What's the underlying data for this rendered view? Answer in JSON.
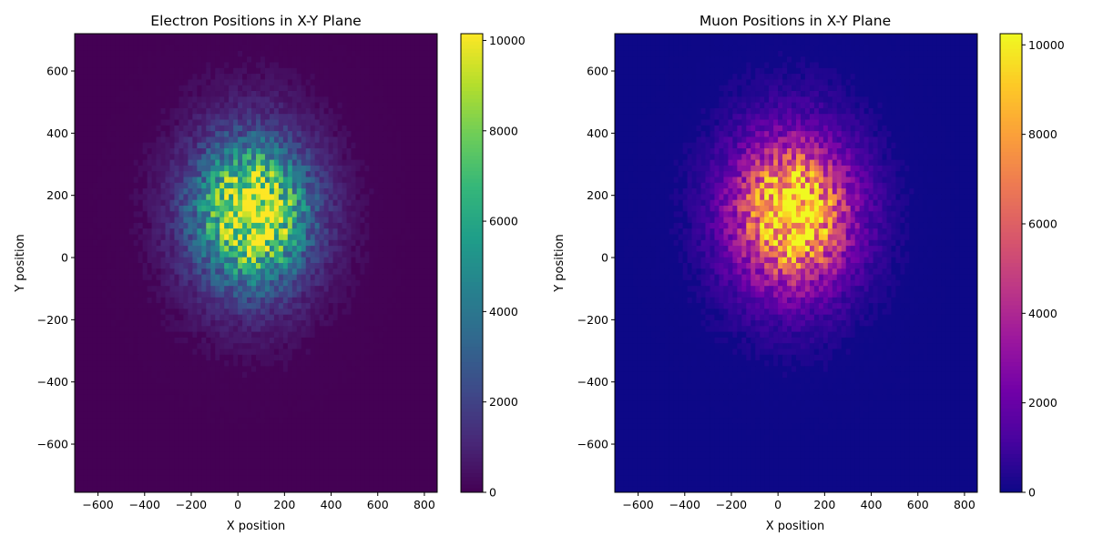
{
  "chart_data": [
    {
      "type": "heatmap",
      "title": "Electron Positions in X-Y Plane",
      "xlabel": "X position",
      "ylabel": "Y position",
      "xlim": [
        -700,
        855
      ],
      "ylim": [
        -755,
        720
      ],
      "xticks": [
        -600,
        -400,
        -200,
        0,
        200,
        400,
        600,
        800
      ],
      "yticks": [
        -600,
        -400,
        -200,
        0,
        200,
        400,
        600
      ],
      "xtick_labels": [
        "−600",
        "−400",
        "−200",
        "0",
        "200",
        "400",
        "600",
        "800"
      ],
      "ytick_labels": [
        "−600",
        "−400",
        "−200",
        "0",
        "200",
        "400",
        "600"
      ],
      "colormap": "viridis",
      "colorbar": {
        "min": 0,
        "max": 10150,
        "ticks": [
          0,
          2000,
          4000,
          6000,
          8000,
          10000
        ],
        "tick_labels": [
          "0",
          "2000",
          "4000",
          "6000",
          "8000",
          "10000"
        ]
      },
      "distribution": {
        "center_x": 60,
        "center_y": 140,
        "sigma_x": 150,
        "sigma_y": 140,
        "peak_count": 10000,
        "halo_sigma": 260,
        "halo_peak": 1500
      }
    },
    {
      "type": "heatmap",
      "title": "Muon Positions in X-Y Plane",
      "xlabel": "X position",
      "ylabel": "Y position",
      "xlim": [
        -700,
        855
      ],
      "ylim": [
        -755,
        720
      ],
      "xticks": [
        -600,
        -400,
        -200,
        0,
        200,
        400,
        600,
        800
      ],
      "yticks": [
        -600,
        -400,
        -200,
        0,
        200,
        400,
        600
      ],
      "xtick_labels": [
        "−600",
        "−400",
        "−200",
        "0",
        "200",
        "400",
        "600",
        "800"
      ],
      "ytick_labels": [
        "−600",
        "−400",
        "−200",
        "0",
        "200",
        "400",
        "600"
      ],
      "colormap": "plasma",
      "colorbar": {
        "min": 0,
        "max": 10250,
        "ticks": [
          0,
          2000,
          4000,
          6000,
          8000,
          10000
        ],
        "tick_labels": [
          "0",
          "2000",
          "4000",
          "6000",
          "8000",
          "10000"
        ]
      },
      "distribution": {
        "center_x": 60,
        "center_y": 140,
        "sigma_x": 150,
        "sigma_y": 140,
        "peak_count": 10000,
        "halo_sigma": 260,
        "halo_peak": 1500
      }
    }
  ]
}
